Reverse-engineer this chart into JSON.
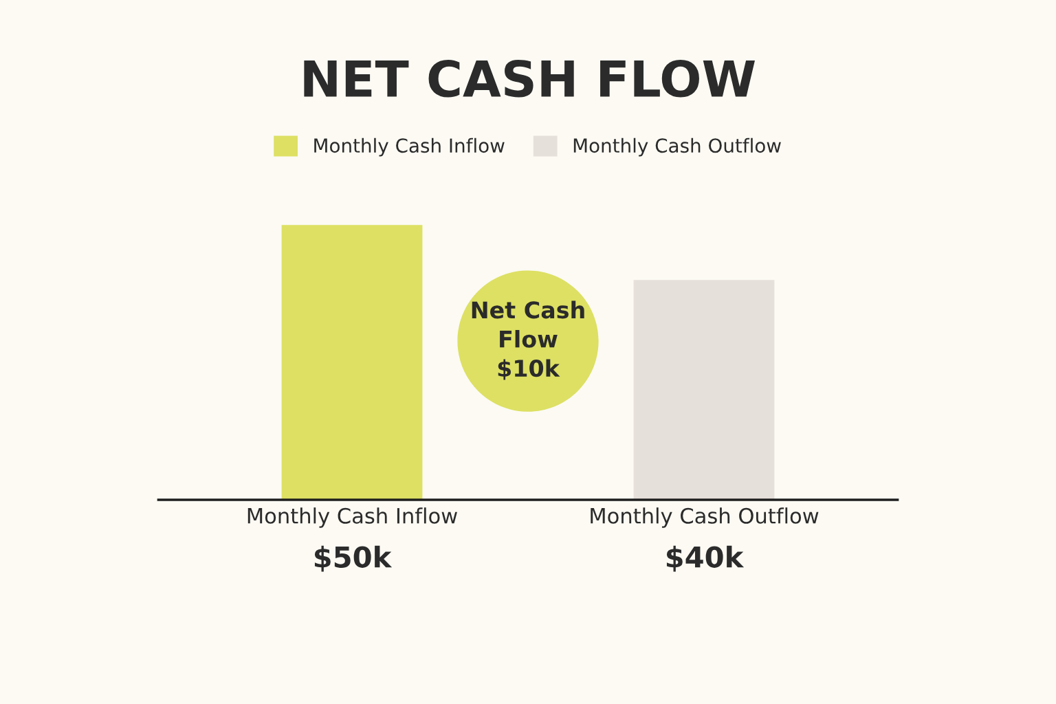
{
  "chart_data": {
    "type": "bar",
    "title": "NET CASH FLOW",
    "categories": [
      "Monthly Cash Inflow",
      "Monthly Cash Outflow"
    ],
    "series": [
      {
        "name": "Monthly Cash Inflow",
        "color": "#dde063",
        "values": [
          50,
          null
        ],
        "value_labels": [
          "$50k",
          null
        ]
      },
      {
        "name": "Monthly Cash Outflow",
        "color": "#e6e0da",
        "values": [
          null,
          40
        ],
        "value_labels": [
          null,
          "$40k"
        ]
      }
    ],
    "annotations": [
      "Net Cash\nFlow\n$10k"
    ],
    "legend": "top",
    "grid": false,
    "tick_labels": "x"
  }
}
